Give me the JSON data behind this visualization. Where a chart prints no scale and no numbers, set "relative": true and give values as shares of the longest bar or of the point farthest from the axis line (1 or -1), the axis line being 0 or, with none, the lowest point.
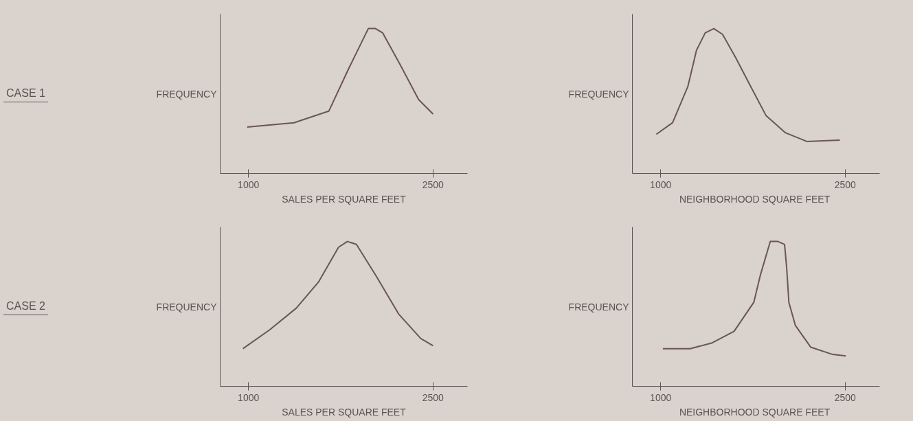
{
  "chart_data": [
    {
      "type": "line",
      "relative": true,
      "annotations": [
        "CASE 1"
      ],
      "xlabel": "SALES PER SQUARE FEET",
      "ylabel": "FREQUENCY",
      "xlim": [
        770,
        2780
      ],
      "xticks": [
        1000,
        2500
      ],
      "grid": false,
      "x": [
        990,
        1370,
        1653,
        1818,
        1974,
        2032,
        2091,
        2227,
        2383,
        2500
      ],
      "series": [
        {
          "color": "#6b5552",
          "values": [
            0.32,
            0.35,
            0.43,
            0.73,
            1.0,
            1.0,
            0.97,
            0.76,
            0.51,
            0.41
          ]
        }
      ]
    },
    {
      "type": "line",
      "relative": true,
      "xlabel": "NEIGHBORHOOD  SQUARE FEET",
      "ylabel": "FREQUENCY",
      "xlim": [
        770,
        2780
      ],
      "xticks": [
        1000,
        2500
      ],
      "grid": false,
      "x": [
        965,
        1097,
        1221,
        1291,
        1362,
        1432,
        1503,
        1609,
        1732,
        1856,
        2015,
        2191,
        2456
      ],
      "series": [
        {
          "color": "#6b5552",
          "values": [
            0.27,
            0.35,
            0.6,
            0.85,
            0.97,
            1.0,
            0.96,
            0.8,
            0.6,
            0.4,
            0.28,
            0.22,
            0.23
          ]
        }
      ]
    },
    {
      "type": "line",
      "relative": true,
      "annotations": [
        "CASE 2"
      ],
      "xlabel": "SALES PER SQUARE FEET",
      "ylabel": "FREQUENCY",
      "xlim": [
        770,
        2780
      ],
      "xticks": [
        1000,
        2500
      ],
      "grid": false,
      "x": [
        955,
        1172,
        1389,
        1569,
        1732,
        1804,
        1877,
        2039,
        2220,
        2400,
        2500
      ],
      "series": [
        {
          "color": "#6b5552",
          "values": [
            0.26,
            0.39,
            0.54,
            0.72,
            0.96,
            1.0,
            0.98,
            0.76,
            0.5,
            0.33,
            0.28
          ]
        }
      ]
    },
    {
      "type": "line",
      "relative": true,
      "xlabel": "NEIGHBORHOOD  SQUARE FEET",
      "ylabel": "FREQUENCY",
      "xlim": [
        770,
        2780
      ],
      "xticks": [
        1000,
        2500
      ],
      "grid": false,
      "x": [
        1018,
        1240,
        1419,
        1597,
        1757,
        1811,
        1891,
        1953,
        2007,
        2024,
        2042,
        2095,
        2220,
        2398,
        2505
      ],
      "series": [
        {
          "color": "#6b5552",
          "values": [
            0.26,
            0.26,
            0.3,
            0.38,
            0.58,
            0.77,
            1.0,
            1.0,
            0.98,
            0.82,
            0.58,
            0.42,
            0.27,
            0.22,
            0.21
          ]
        }
      ]
    }
  ]
}
